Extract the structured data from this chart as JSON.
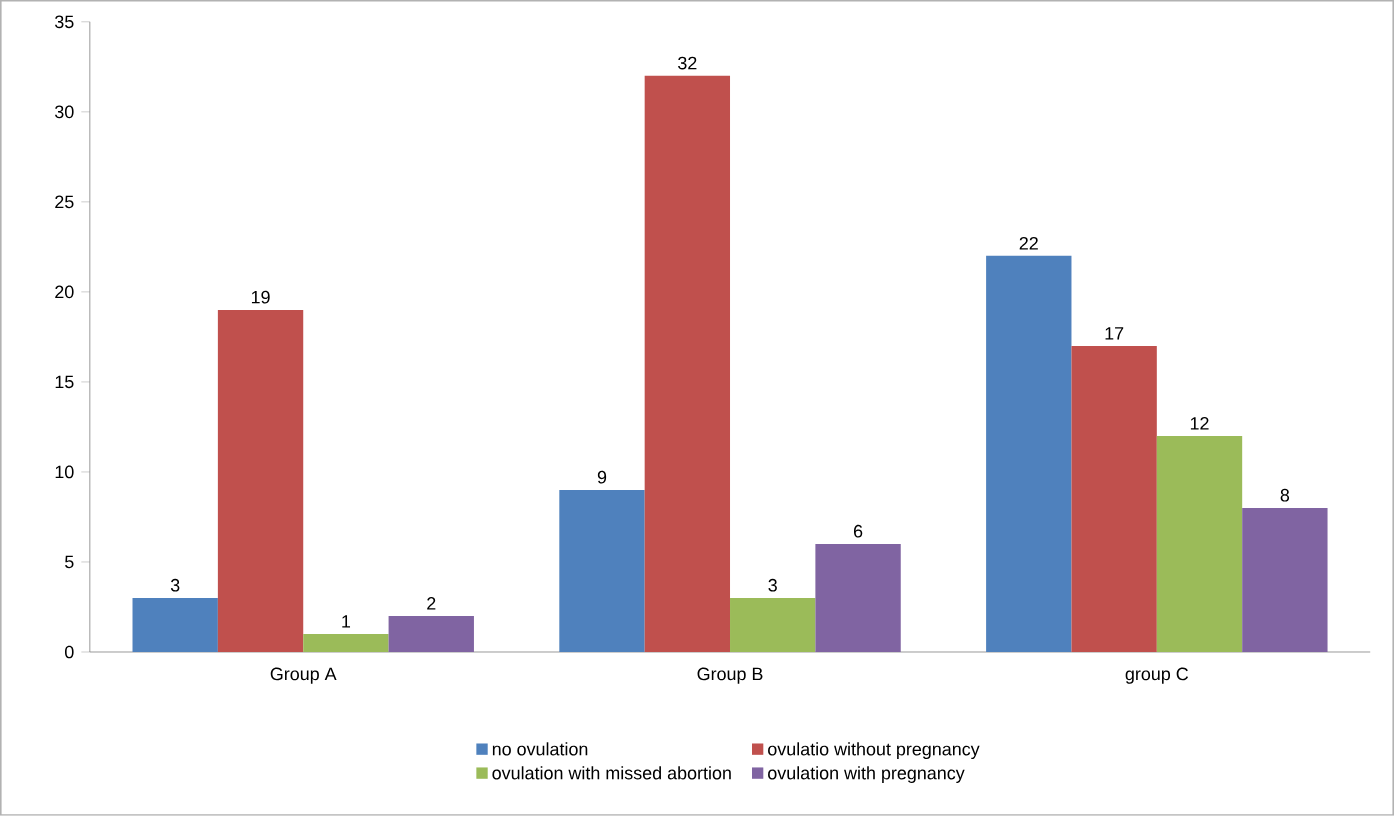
{
  "chart_data": {
    "type": "bar",
    "categories": [
      "Group A",
      "Group B",
      "group C"
    ],
    "series": [
      {
        "name": "no ovulation",
        "color": "#4f81bd",
        "values": [
          3,
          9,
          22
        ]
      },
      {
        "name": "ovulatio without pregnancy",
        "color": "#c0504d",
        "values": [
          19,
          32,
          17
        ]
      },
      {
        "name": "ovulation with missed abortion",
        "color": "#9bbb59",
        "values": [
          1,
          3,
          12
        ]
      },
      {
        "name": "ovulation with pregnancy",
        "color": "#8064a2",
        "values": [
          2,
          6,
          8
        ]
      }
    ],
    "ylim": [
      0,
      35
    ],
    "yticks": [
      0,
      5,
      10,
      15,
      20,
      25,
      30,
      35
    ],
    "data_labels": true,
    "legend": "bottom"
  }
}
